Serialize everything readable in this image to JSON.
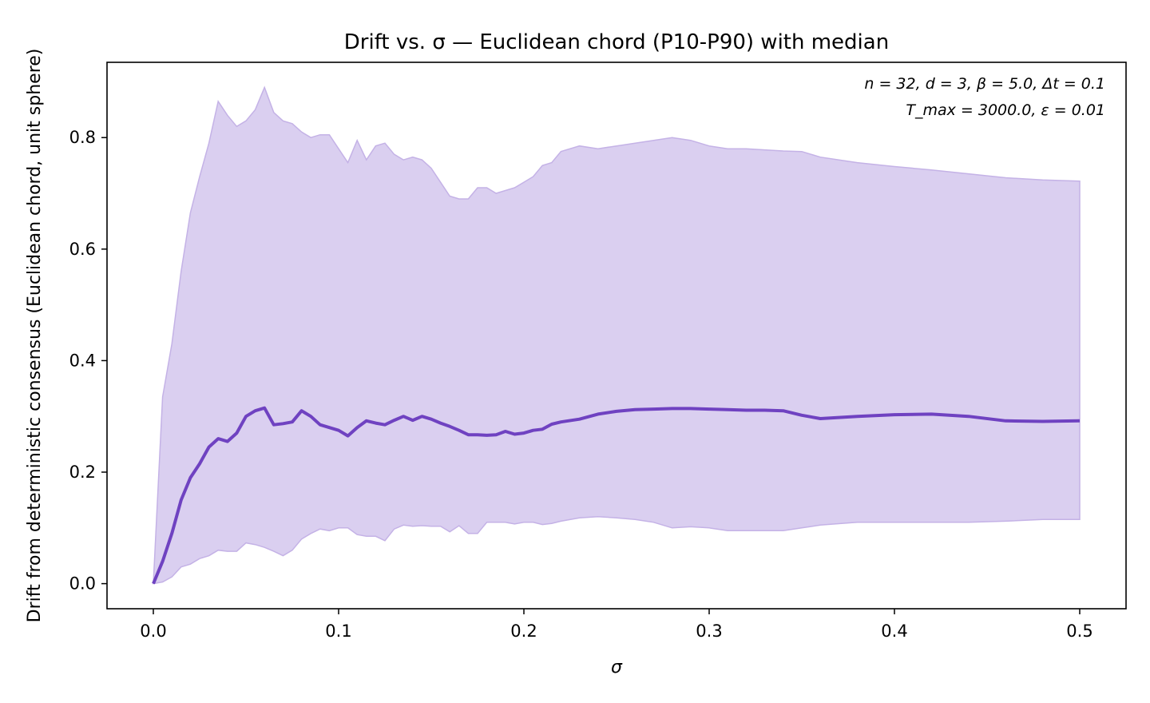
{
  "chart_data": {
    "type": "area",
    "title": "Drift vs. σ — Euclidean chord (P10-P90) with median",
    "xlabel": "σ",
    "ylabel": "Drift from deterministic consensus (Euclidean chord, unit sphere)",
    "annotation_line1": "n = 32, d = 3, β = 5.0, Δt = 0.1",
    "annotation_line2": "T_max = 3000.0, ε = 0.01",
    "annotation_placement": "top-right",
    "xlim": [
      -0.025,
      0.525
    ],
    "ylim": [
      -0.045,
      0.935
    ],
    "xticks": [
      0.0,
      0.1,
      0.2,
      0.3,
      0.4,
      0.5
    ],
    "xtick_labels": [
      "0.0",
      "0.1",
      "0.2",
      "0.3",
      "0.4",
      "0.5"
    ],
    "yticks": [
      0.0,
      0.2,
      0.4,
      0.6,
      0.8
    ],
    "ytick_labels": [
      "0.0",
      "0.2",
      "0.4",
      "0.6",
      "0.8"
    ],
    "grid": false,
    "colors": {
      "median": "#6f42c1",
      "band_fill": "#dacff0",
      "band_edge": "#c4b2e6"
    },
    "band": {
      "x": [
        0.0,
        0.005,
        0.01,
        0.015,
        0.02,
        0.025,
        0.03,
        0.035,
        0.04,
        0.045,
        0.05,
        0.055,
        0.06,
        0.065,
        0.07,
        0.075,
        0.08,
        0.085,
        0.09,
        0.095,
        0.1,
        0.105,
        0.11,
        0.115,
        0.12,
        0.125,
        0.13,
        0.135,
        0.14,
        0.145,
        0.15,
        0.155,
        0.16,
        0.165,
        0.17,
        0.175,
        0.18,
        0.185,
        0.19,
        0.195,
        0.2,
        0.205,
        0.21,
        0.215,
        0.22,
        0.23,
        0.24,
        0.25,
        0.26,
        0.27,
        0.28,
        0.29,
        0.3,
        0.31,
        0.32,
        0.33,
        0.34,
        0.35,
        0.36,
        0.38,
        0.4,
        0.42,
        0.44,
        0.46,
        0.48,
        0.5
      ],
      "p90": [
        0.0,
        0.335,
        0.43,
        0.56,
        0.665,
        0.73,
        0.79,
        0.865,
        0.84,
        0.82,
        0.83,
        0.85,
        0.89,
        0.845,
        0.83,
        0.825,
        0.81,
        0.8,
        0.805,
        0.805,
        0.78,
        0.755,
        0.795,
        0.76,
        0.785,
        0.79,
        0.77,
        0.76,
        0.765,
        0.76,
        0.745,
        0.72,
        0.695,
        0.69,
        0.69,
        0.71,
        0.71,
        0.7,
        0.705,
        0.71,
        0.72,
        0.73,
        0.75,
        0.755,
        0.775,
        0.785,
        0.78,
        0.785,
        0.79,
        0.795,
        0.8,
        0.795,
        0.785,
        0.78,
        0.78,
        0.778,
        0.776,
        0.775,
        0.765,
        0.755,
        0.748,
        0.742,
        0.735,
        0.728,
        0.724,
        0.722
      ],
      "p10": [
        0.0,
        0.003,
        0.012,
        0.03,
        0.035,
        0.045,
        0.05,
        0.06,
        0.058,
        0.058,
        0.073,
        0.07,
        0.065,
        0.058,
        0.05,
        0.06,
        0.08,
        0.09,
        0.098,
        0.095,
        0.1,
        0.1,
        0.088,
        0.085,
        0.085,
        0.077,
        0.098,
        0.105,
        0.103,
        0.104,
        0.103,
        0.103,
        0.093,
        0.104,
        0.09,
        0.09,
        0.11,
        0.11,
        0.11,
        0.107,
        0.11,
        0.11,
        0.106,
        0.108,
        0.112,
        0.118,
        0.12,
        0.118,
        0.115,
        0.11,
        0.1,
        0.102,
        0.1,
        0.095,
        0.095,
        0.095,
        0.095,
        0.1,
        0.105,
        0.11,
        0.11,
        0.11,
        0.11,
        0.112,
        0.115,
        0.115
      ]
    },
    "series": [
      {
        "x": [
          0.0,
          0.005,
          0.01,
          0.015,
          0.02,
          0.025,
          0.03,
          0.035,
          0.04,
          0.045,
          0.05,
          0.055,
          0.06,
          0.065,
          0.07,
          0.075,
          0.08,
          0.085,
          0.09,
          0.095,
          0.1,
          0.105,
          0.11,
          0.115,
          0.12,
          0.125,
          0.13,
          0.135,
          0.14,
          0.145,
          0.15,
          0.155,
          0.16,
          0.165,
          0.17,
          0.175,
          0.18,
          0.185,
          0.19,
          0.195,
          0.2,
          0.205,
          0.21,
          0.215,
          0.22,
          0.23,
          0.24,
          0.25,
          0.26,
          0.27,
          0.28,
          0.29,
          0.3,
          0.31,
          0.32,
          0.33,
          0.34,
          0.35,
          0.36,
          0.38,
          0.4,
          0.42,
          0.44,
          0.46,
          0.48,
          0.5
        ],
        "values": [
          0.0,
          0.04,
          0.09,
          0.15,
          0.19,
          0.215,
          0.245,
          0.26,
          0.255,
          0.27,
          0.3,
          0.31,
          0.315,
          0.285,
          0.287,
          0.29,
          0.31,
          0.3,
          0.285,
          0.28,
          0.275,
          0.265,
          0.28,
          0.292,
          0.288,
          0.285,
          0.293,
          0.3,
          0.293,
          0.3,
          0.295,
          0.288,
          0.282,
          0.275,
          0.267,
          0.267,
          0.266,
          0.267,
          0.273,
          0.268,
          0.27,
          0.275,
          0.277,
          0.286,
          0.29,
          0.295,
          0.304,
          0.309,
          0.312,
          0.313,
          0.314,
          0.314,
          0.313,
          0.312,
          0.311,
          0.311,
          0.31,
          0.302,
          0.296,
          0.3,
          0.303,
          0.304,
          0.3,
          0.292,
          0.291,
          0.292
        ]
      }
    ]
  }
}
